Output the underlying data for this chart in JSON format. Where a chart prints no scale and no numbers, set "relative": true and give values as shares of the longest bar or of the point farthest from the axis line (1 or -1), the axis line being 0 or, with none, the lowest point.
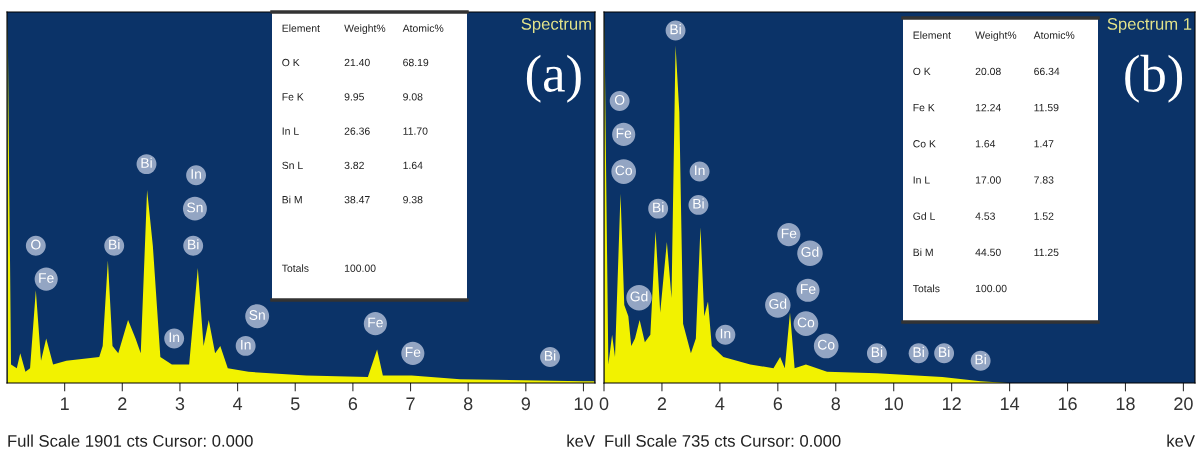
{
  "chart_data": [
    {
      "type": "area",
      "relative": true,
      "title": "Spectrum",
      "xlabel": "keV",
      "xlim": [
        0,
        10.2
      ],
      "xticks": [
        1,
        2,
        3,
        4,
        5,
        6,
        7,
        8,
        9,
        10
      ],
      "grid": false,
      "legend": false,
      "series": [
        {
          "color": "#f2f200",
          "x": [
            0.01,
            0.07,
            0.17,
            0.23,
            0.32,
            0.4,
            0.5,
            0.59,
            0.68,
            0.8,
            1.03,
            1.6,
            1.66,
            1.75,
            1.83,
            1.93,
            2.1,
            2.23,
            2.32,
            2.43,
            2.53,
            2.66,
            2.86,
            3.16,
            3.31,
            3.41,
            3.5,
            3.61,
            3.7,
            3.83,
            4.19,
            5.19,
            6.26,
            6.42,
            6.52,
            7.02,
            7.86,
            9.99,
            10.19
          ],
          "values": [
            1.0,
            0.05,
            0.04,
            0.08,
            0.03,
            0.04,
            0.25,
            0.06,
            0.12,
            0.05,
            0.06,
            0.07,
            0.1,
            0.33,
            0.1,
            0.08,
            0.17,
            0.12,
            0.08,
            0.52,
            0.37,
            0.07,
            0.05,
            0.05,
            0.31,
            0.1,
            0.17,
            0.08,
            0.1,
            0.04,
            0.03,
            0.02,
            0.016,
            0.09,
            0.02,
            0.02,
            0.01,
            0.005,
            0.005
          ]
        }
      ],
      "annotations": [
        {
          "text": "O",
          "x": 0.5,
          "y": 0.37
        },
        {
          "text": "Fe",
          "x": 0.68,
          "y": 0.28
        },
        {
          "text": "Bi",
          "x": 1.86,
          "y": 0.37
        },
        {
          "text": "Bi",
          "x": 2.42,
          "y": 0.59
        },
        {
          "text": "In",
          "x": 3.28,
          "y": 0.56
        },
        {
          "text": "Sn",
          "x": 3.26,
          "y": 0.47
        },
        {
          "text": "Bi",
          "x": 3.23,
          "y": 0.37
        },
        {
          "text": "In",
          "x": 2.9,
          "y": 0.12
        },
        {
          "text": "Sn",
          "x": 4.34,
          "y": 0.18
        },
        {
          "text": "In",
          "x": 4.14,
          "y": 0.1
        },
        {
          "text": "Fe",
          "x": 6.39,
          "y": 0.16
        },
        {
          "text": "Fe",
          "x": 7.04,
          "y": 0.08
        },
        {
          "text": "Bi",
          "x": 9.42,
          "y": 0.07
        },
        "(a)",
        "Full Scale 1901 cts Cursor: 0.000"
      ]
    },
    {
      "type": "other",
      "categories": [
        "Element",
        "Weight%",
        "Atomic%"
      ],
      "cell_labels": [
        [
          "O K",
          "21.40",
          "68.19"
        ],
        [
          "Fe K",
          "9.95",
          "9.08"
        ],
        [
          "In L",
          "26.36",
          "11.70"
        ],
        [
          "Sn L",
          "3.82",
          "1.64"
        ],
        [
          "Bi M",
          "38.47",
          "9.38"
        ],
        [
          null,
          null,
          null
        ],
        [
          "Totals",
          "100.00",
          null
        ]
      ]
    },
    {
      "type": "area",
      "relative": true,
      "title": "Spectrum 1",
      "xlabel": "keV",
      "xlim": [
        0,
        20.4
      ],
      "xticks": [
        0,
        2,
        4,
        6,
        8,
        10,
        12,
        14,
        16,
        18,
        20
      ],
      "grid": false,
      "legend": false,
      "series": [
        {
          "color": "#f2f200",
          "x": [
            0.01,
            0.15,
            0.28,
            0.38,
            0.57,
            0.7,
            0.84,
            0.94,
            1.07,
            1.23,
            1.41,
            1.6,
            1.78,
            1.94,
            2.17,
            2.33,
            2.47,
            2.6,
            2.73,
            3.0,
            3.17,
            3.33,
            3.46,
            3.59,
            3.72,
            4.12,
            5.05,
            5.85,
            6.08,
            6.24,
            6.42,
            6.58,
            6.97,
            7.7,
            9.42,
            11.68,
            13.0,
            13.93,
            20.4
          ],
          "values": [
            1.0,
            0.05,
            0.13,
            0.07,
            0.51,
            0.21,
            0.18,
            0.1,
            0.12,
            0.17,
            0.11,
            0.13,
            0.41,
            0.19,
            0.38,
            0.23,
            0.91,
            0.73,
            0.16,
            0.08,
            0.12,
            0.42,
            0.18,
            0.22,
            0.1,
            0.07,
            0.05,
            0.04,
            0.07,
            0.04,
            0.19,
            0.04,
            0.05,
            0.03,
            0.026,
            0.016,
            0.005,
            0,
            0
          ]
        }
      ],
      "annotations": [
        {
          "text": "O",
          "x": 0.54,
          "y": 0.76
        },
        {
          "text": "Fe",
          "x": 0.68,
          "y": 0.67
        },
        {
          "text": "Co",
          "x": 0.68,
          "y": 0.57
        },
        {
          "text": "Bi",
          "x": 2.47,
          "y": 0.95
        },
        {
          "text": "Bi",
          "x": 1.87,
          "y": 0.47
        },
        {
          "text": "Gd",
          "x": 1.21,
          "y": 0.23
        },
        {
          "text": "In",
          "x": 3.3,
          "y": 0.57
        },
        {
          "text": "Bi",
          "x": 3.26,
          "y": 0.48
        },
        {
          "text": "In",
          "x": 4.19,
          "y": 0.13
        },
        {
          "text": "Fe",
          "x": 6.38,
          "y": 0.4
        },
        {
          "text": "Gd",
          "x": 7.11,
          "y": 0.35
        },
        {
          "text": "Fe",
          "x": 7.04,
          "y": 0.25
        },
        {
          "text": "Co",
          "x": 6.97,
          "y": 0.16
        },
        {
          "text": "Gd",
          "x": 6.0,
          "y": 0.21
        },
        {
          "text": "Co",
          "x": 7.67,
          "y": 0.1
        },
        {
          "text": "Bi",
          "x": 9.42,
          "y": 0.08
        },
        {
          "text": "Bi",
          "x": 10.86,
          "y": 0.08
        },
        {
          "text": "Bi",
          "x": 11.74,
          "y": 0.08
        },
        {
          "text": "Bi",
          "x": 13.0,
          "y": 0.06
        },
        "(b)",
        "Full Scale 735 cts Cursor: 0.000"
      ]
    },
    {
      "type": "other",
      "categories": [
        "Element",
        "Weight%",
        "Atomic%"
      ],
      "cell_labels": [
        [
          "O K",
          "20.08",
          "66.34"
        ],
        [
          "Fe K",
          "12.24",
          "11.59"
        ],
        [
          "Co K",
          "1.64",
          "1.47"
        ],
        [
          "In L",
          "17.00",
          "7.83"
        ],
        [
          "Gd L",
          "4.53",
          "1.52"
        ],
        [
          "Bi M",
          "44.50",
          "11.25"
        ],
        [
          "Totals",
          "100.00",
          null
        ]
      ]
    }
  ]
}
